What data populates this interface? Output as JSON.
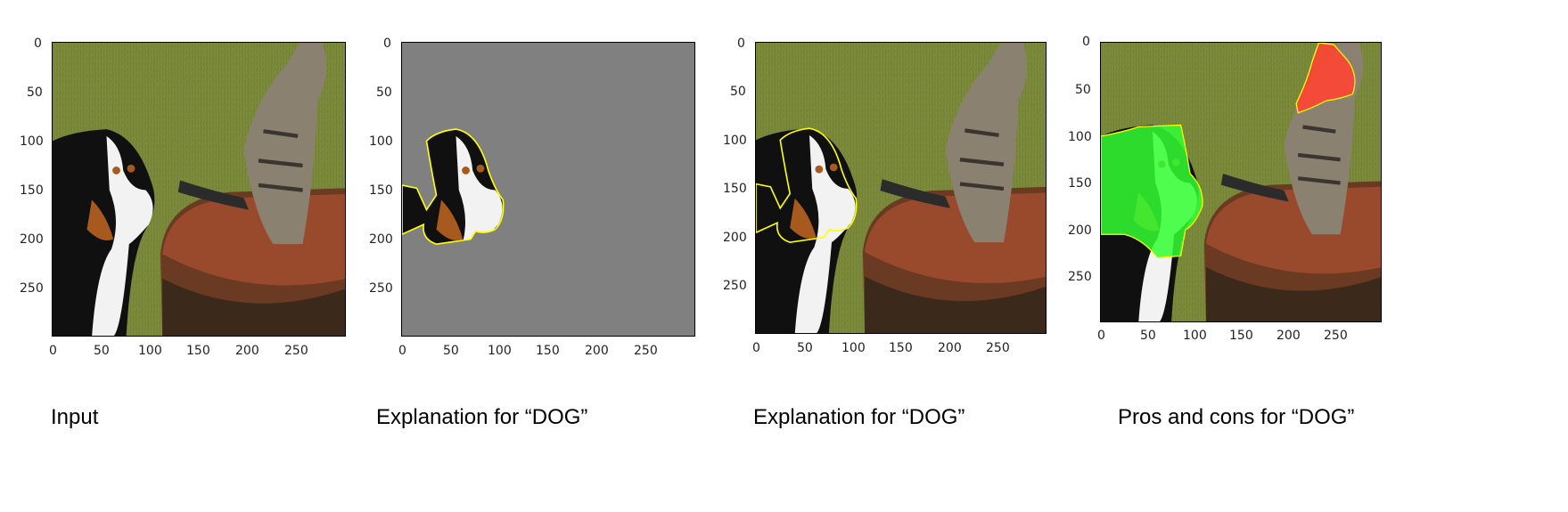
{
  "panels": [
    {
      "caption": "Input",
      "yticks": [
        "0",
        "50",
        "100",
        "150",
        "200",
        "250"
      ],
      "xticks": [
        "0",
        "50",
        "100",
        "150",
        "200",
        "250"
      ]
    },
    {
      "caption": "Explanation for “DOG”",
      "yticks": [
        "0",
        "50",
        "100",
        "150",
        "200",
        "250"
      ],
      "xticks": [
        "0",
        "50",
        "100",
        "150",
        "200",
        "250"
      ]
    },
    {
      "caption": "Explanation for “DOG”",
      "yticks": [
        "0",
        "50",
        "100",
        "150",
        "200",
        "250"
      ],
      "xticks": [
        "0",
        "50",
        "100",
        "150",
        "200",
        "250"
      ]
    },
    {
      "caption": "Pros and cons for “DOG”",
      "yticks": [
        "0",
        "50",
        "100",
        "150",
        "200",
        "250"
      ],
      "xticks": [
        "0",
        "50",
        "100",
        "150",
        "200",
        "250"
      ]
    }
  ],
  "colors": {
    "grass": "#7a8a3a",
    "masked": "#808080",
    "boundary": "#ffff00",
    "positive": "#33ff33",
    "negative": "#ff4433"
  }
}
